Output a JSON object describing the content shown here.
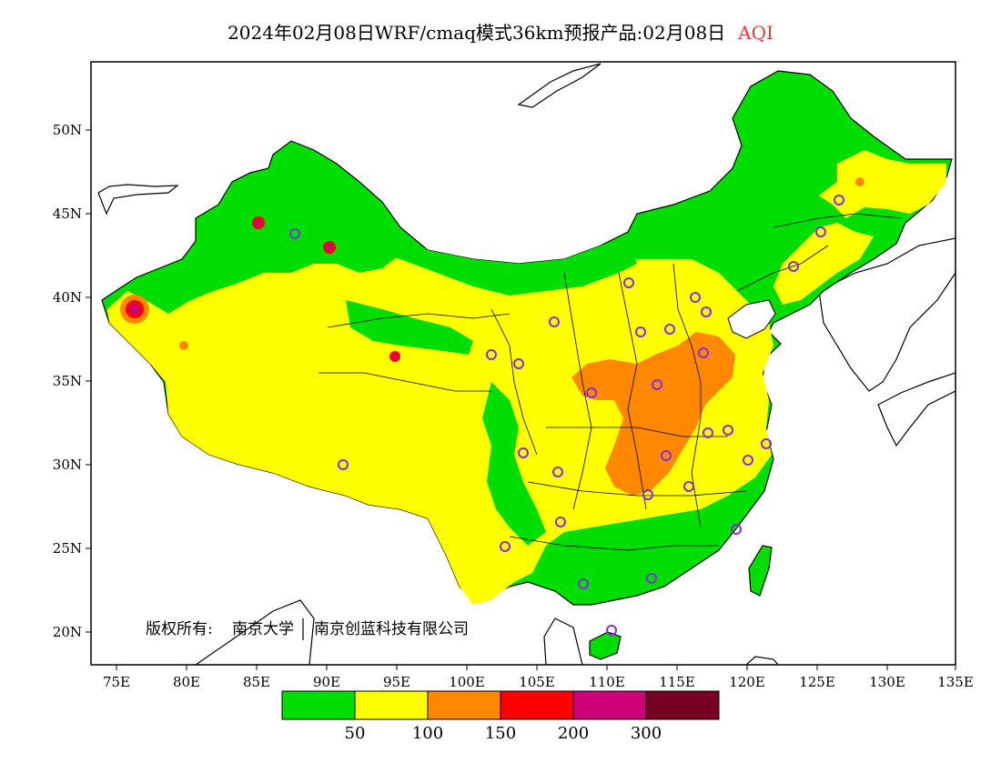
{
  "title": {
    "text": "2024年02月08日WRF/cmaq模式36km预报产品:02月08日",
    "variable": "AQI",
    "variable_color": "#e23a3a"
  },
  "axes": {
    "lon_labels": [
      "75E",
      "80E",
      "85E",
      "90E",
      "95E",
      "100E",
      "105E",
      "110E",
      "115E",
      "120E",
      "125E",
      "130E",
      "135E"
    ],
    "lat_labels": [
      "50N",
      "45N",
      "40N",
      "35N",
      "30N",
      "25N",
      "20N"
    ]
  },
  "copyright": {
    "prefix": "版权所有:",
    "org1": "南京大学",
    "org2": "南京创蓝科技有限公司"
  },
  "legend": {
    "colors": [
      "#00dd00",
      "#ffff00",
      "#ff8800",
      "#ff0000",
      "#cc0077",
      "#770022"
    ],
    "labels": [
      "50",
      "100",
      "150",
      "200",
      "300"
    ]
  },
  "stations_color": "#8a2be2"
}
